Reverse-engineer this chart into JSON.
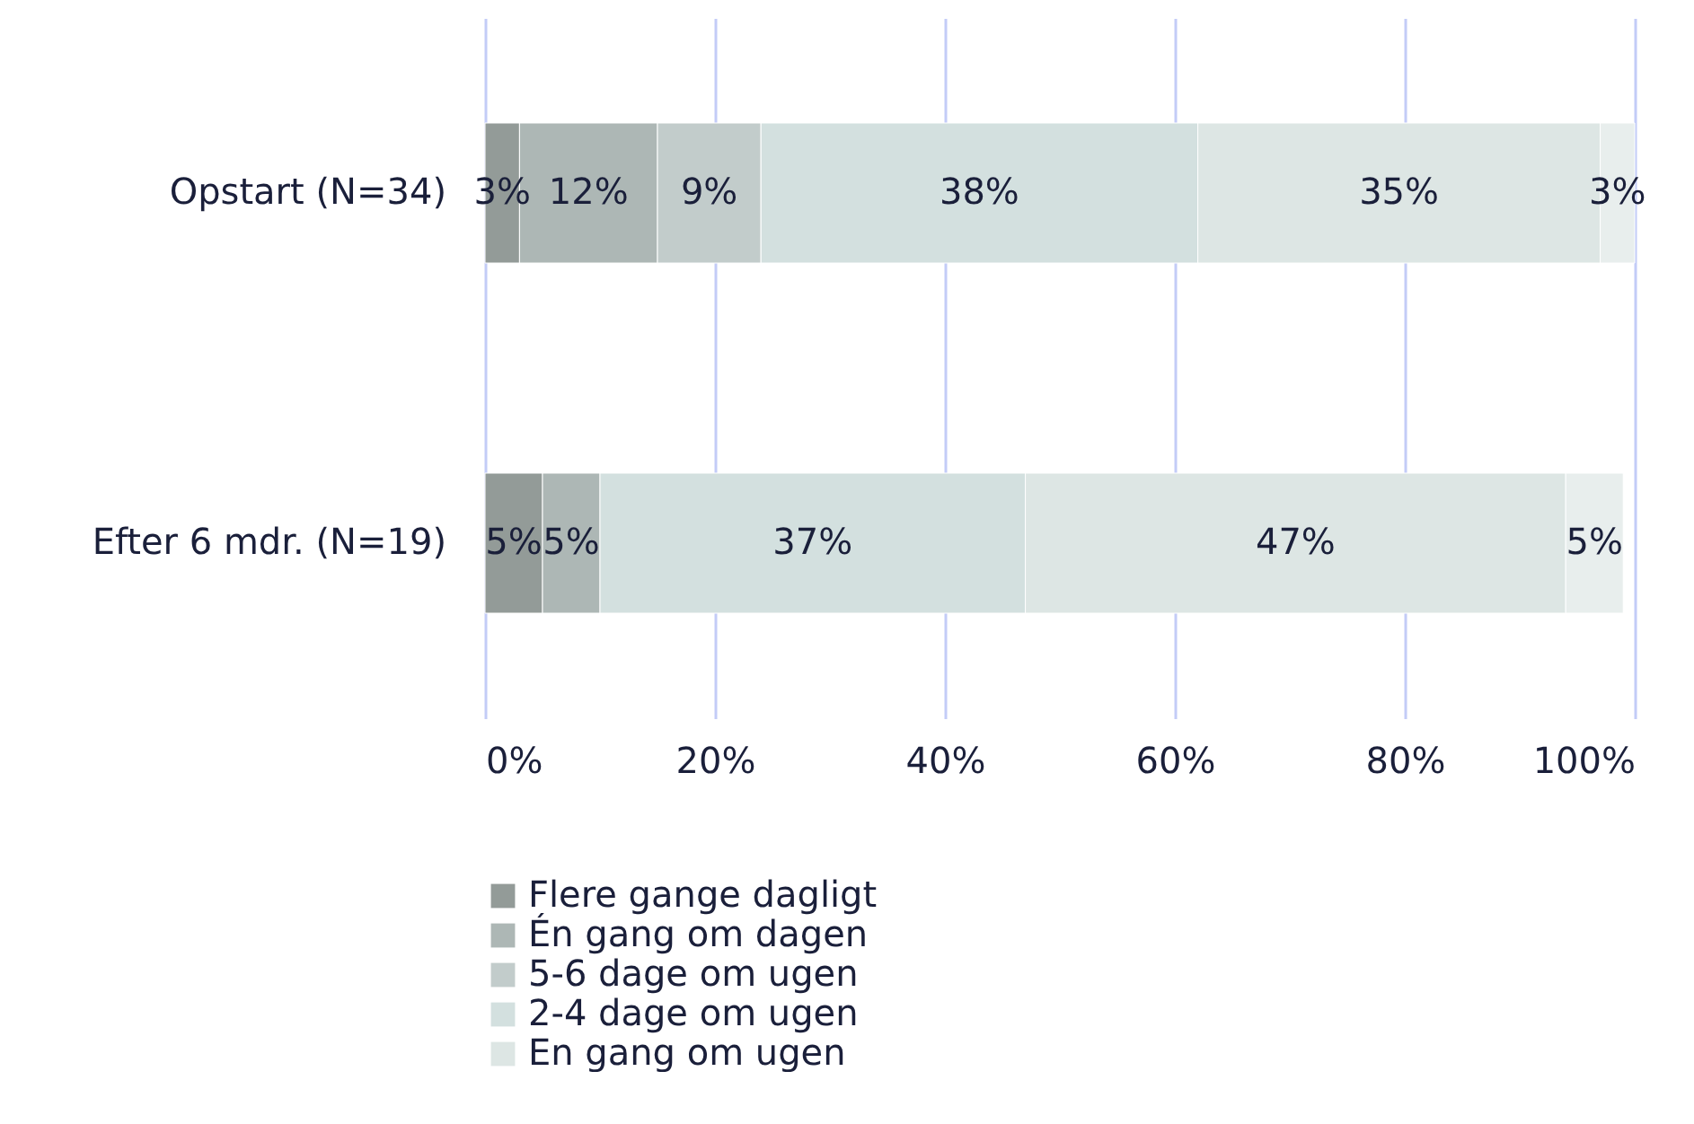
{
  "chart_data": {
    "type": "bar",
    "orientation": "horizontal",
    "stacked": true,
    "categories": [
      "Opstart (N=34)",
      "Efter 6 mdr. (N=19)"
    ],
    "series": [
      {
        "name": "Flere gange dagligt",
        "color": "#939b98",
        "values": [
          3,
          5
        ],
        "value_labels": [
          "3%",
          "5%"
        ]
      },
      {
        "name": "Én gang om dagen",
        "color": "#adb7b5",
        "values": [
          12,
          5
        ],
        "value_labels": [
          "12%",
          "5%"
        ]
      },
      {
        "name": "5-6 dage om ugen",
        "color": "#c2cccb",
        "values": [
          9,
          null
        ],
        "value_labels": [
          "9%",
          null
        ]
      },
      {
        "name": "2-4 dage om ugen",
        "color": "#d3e0df",
        "values": [
          38,
          37
        ],
        "value_labels": [
          "38%",
          "37%"
        ]
      },
      {
        "name": "En gang om ugen",
        "color": "#dde6e4",
        "values": [
          35,
          47
        ],
        "value_labels": [
          "35%",
          "47%"
        ]
      },
      {
        "color": "#e8eeed",
        "values": [
          3,
          5
        ],
        "value_labels": [
          "3%",
          "5%"
        ]
      }
    ],
    "xlim": [
      0,
      100
    ],
    "xticks": [
      {
        "value": 0,
        "label": "0%"
      },
      {
        "value": 20,
        "label": "20%"
      },
      {
        "value": 40,
        "label": "40%"
      },
      {
        "value": 60,
        "label": "60%"
      },
      {
        "value": 80,
        "label": "80%"
      },
      {
        "value": 100,
        "label": "100%"
      }
    ],
    "grid": "x",
    "legend": "bottom"
  }
}
